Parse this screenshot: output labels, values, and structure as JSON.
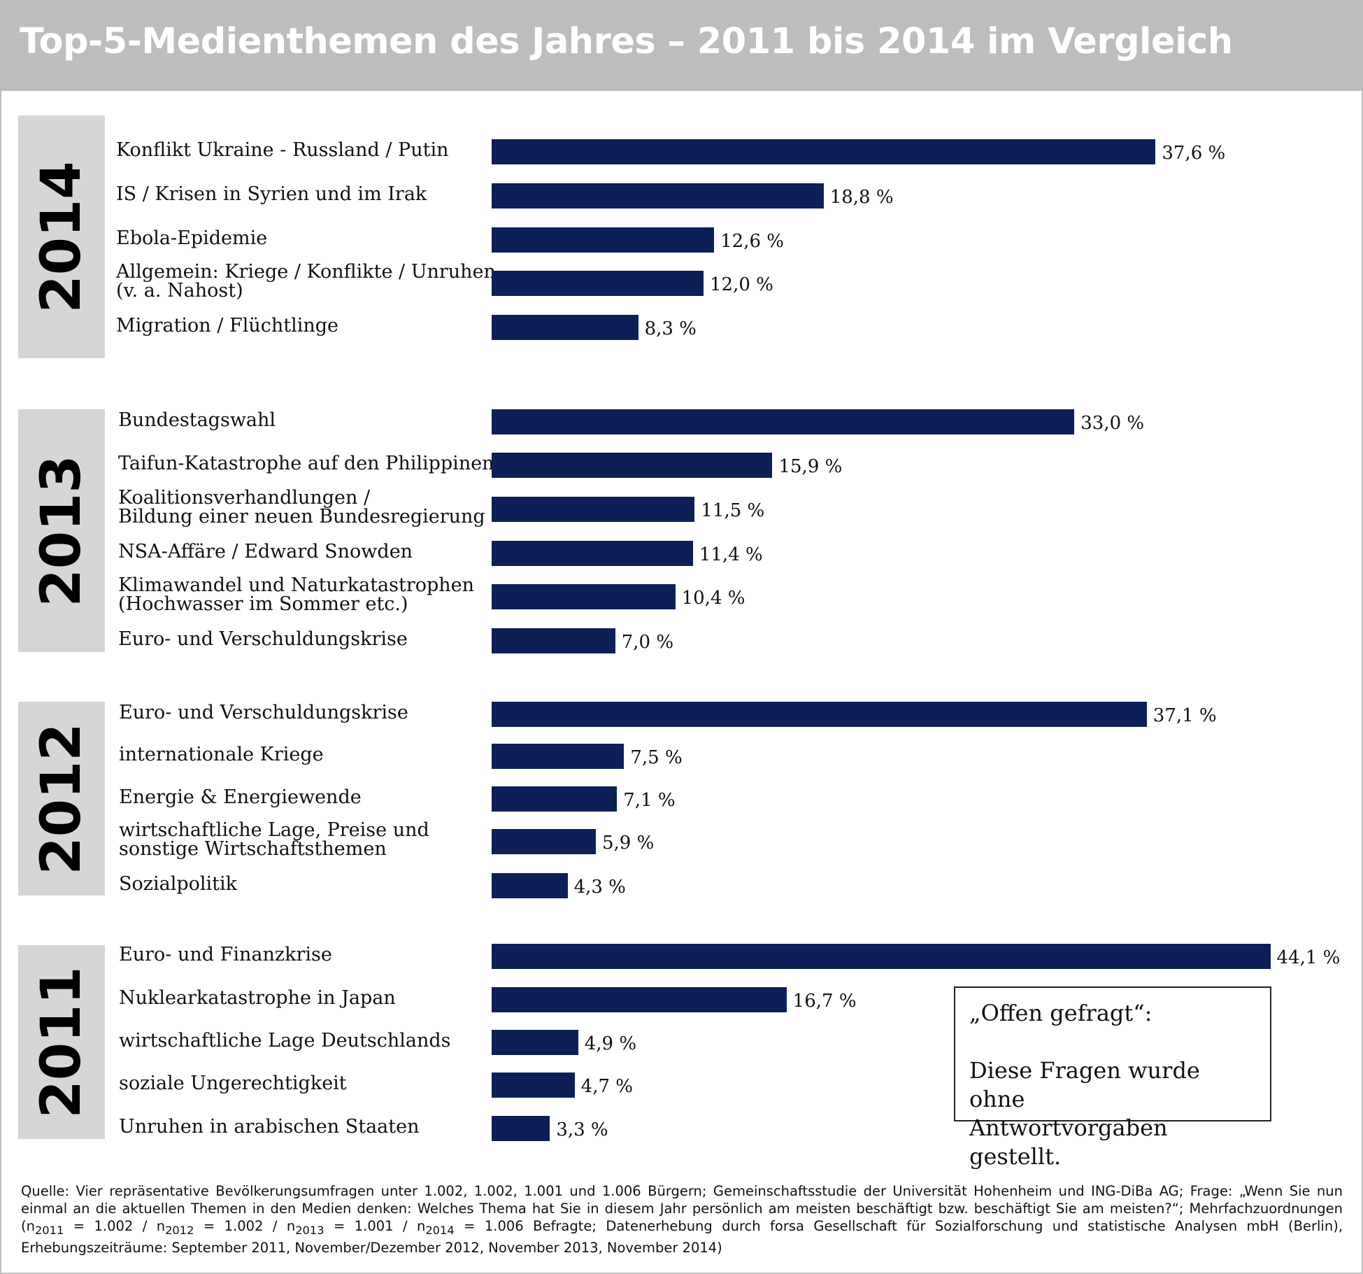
{
  "chart_data": {
    "type": "bar",
    "title": "Top-5-Medienthemen des Jahres – 2011 bis 2014 im Vergleich",
    "unit": "%",
    "groups": [
      {
        "year": "2014",
        "items": [
          {
            "label": "Konflikt Ukraine - Russland / Putin",
            "value": 37.6,
            "value_label": "37,6 %"
          },
          {
            "label": "IS / Krisen in Syrien und im Irak",
            "value": 18.8,
            "value_label": "18,8 %"
          },
          {
            "label": "Ebola-Epidemie",
            "value": 12.6,
            "value_label": "12,6 %"
          },
          {
            "label": "Allgemein: Kriege / Konflikte / Unruhen\n(v. a. Nahost)",
            "value": 12.0,
            "value_label": "12,0 %"
          },
          {
            "label": "Migration / Flüchtlinge",
            "value": 8.3,
            "value_label": "8,3 %"
          }
        ]
      },
      {
        "year": "2013",
        "items": [
          {
            "label": "Bundestagswahl",
            "value": 33.0,
            "value_label": "33,0 %"
          },
          {
            "label": "Taifun-Katastrophe auf den Philippinen",
            "value": 15.9,
            "value_label": "15,9 %"
          },
          {
            "label": "Koalitionsverhandlungen /\nBildung einer neuen Bundesregierung",
            "value": 11.5,
            "value_label": "11,5 %"
          },
          {
            "label": "NSA-Affäre / Edward Snowden",
            "value": 11.4,
            "value_label": "11,4 %"
          },
          {
            "label": "Klimawandel und Naturkatastrophen\n(Hochwasser im Sommer etc.)",
            "value": 10.4,
            "value_label": "10,4 %"
          },
          {
            "label": "Euro- und Verschuldungskrise",
            "value": 7.0,
            "value_label": "7,0 %"
          }
        ]
      },
      {
        "year": "2012",
        "items": [
          {
            "label": "Euro- und Verschuldungskrise",
            "value": 37.1,
            "value_label": "37,1 %"
          },
          {
            "label": "internationale Kriege",
            "value": 7.5,
            "value_label": "7,5 %"
          },
          {
            "label": "Energie & Energiewende",
            "value": 7.1,
            "value_label": "7,1 %"
          },
          {
            "label": "wirtschaftliche Lage, Preise und\nsonstige Wirtschaftsthemen",
            "value": 5.9,
            "value_label": "5,9 %"
          },
          {
            "label": "Sozialpolitik",
            "value": 4.3,
            "value_label": "4,3 %"
          }
        ]
      },
      {
        "year": "2011",
        "items": [
          {
            "label": "Euro- und Finanzkrise",
            "value": 44.1,
            "value_label": "44,1 %"
          },
          {
            "label": "Nuklearkatastrophe in Japan",
            "value": 16.7,
            "value_label": "16,7 %"
          },
          {
            "label": "wirtschaftliche Lage Deutschlands",
            "value": 4.9,
            "value_label": "4,9 %"
          },
          {
            "label": "soziale Ungerechtigkeit",
            "value": 4.7,
            "value_label": "4,7 %"
          },
          {
            "label": "Unruhen in arabischen Staaten",
            "value": 3.3,
            "value_label": "3,3 %"
          }
        ]
      }
    ]
  },
  "colors": {
    "bar": "#0c1f57",
    "header_bg": "#bdbdbd",
    "year_bg": "#d6d6d6"
  },
  "note": {
    "line1": "„Offen gefragt“:",
    "line2": "Diese Fragen wurde ohne",
    "line3": "Antwortvorgaben gestellt."
  },
  "source": {
    "part1": "Quelle: Vier repräsentative Bevölkerungsumfragen unter 1.002, 1.002, 1.001 und 1.006 Bürgern; Gemeinschaftsstudie der Universität Hohenheim und ING-DiBa AG; Frage: „Wenn Sie nun einmal an die aktuellen Themen in den Medien denken: Welches Thema hat Sie in diesem Jahr persönlich am meisten beschäftigt bzw. beschäftigt Sie am meisten?“; Mehrfachzuordnungen (n",
    "sub2011": "2011",
    "eq2011": " = 1.002 / n",
    "sub2012": "2012",
    "eq2012": " = 1.002 / n",
    "sub2013": "2013",
    "eq2013": " = 1.001 / n",
    "sub2014": "2014",
    "part2": " = 1.006 Befragte; Datenerhebung durch forsa Gesellschaft für Sozialforschung und statistische Analysen mbH (Berlin), Erhebungszeiträume: September 2011, November/Dezember 2012, November 2013, November 2014)"
  }
}
